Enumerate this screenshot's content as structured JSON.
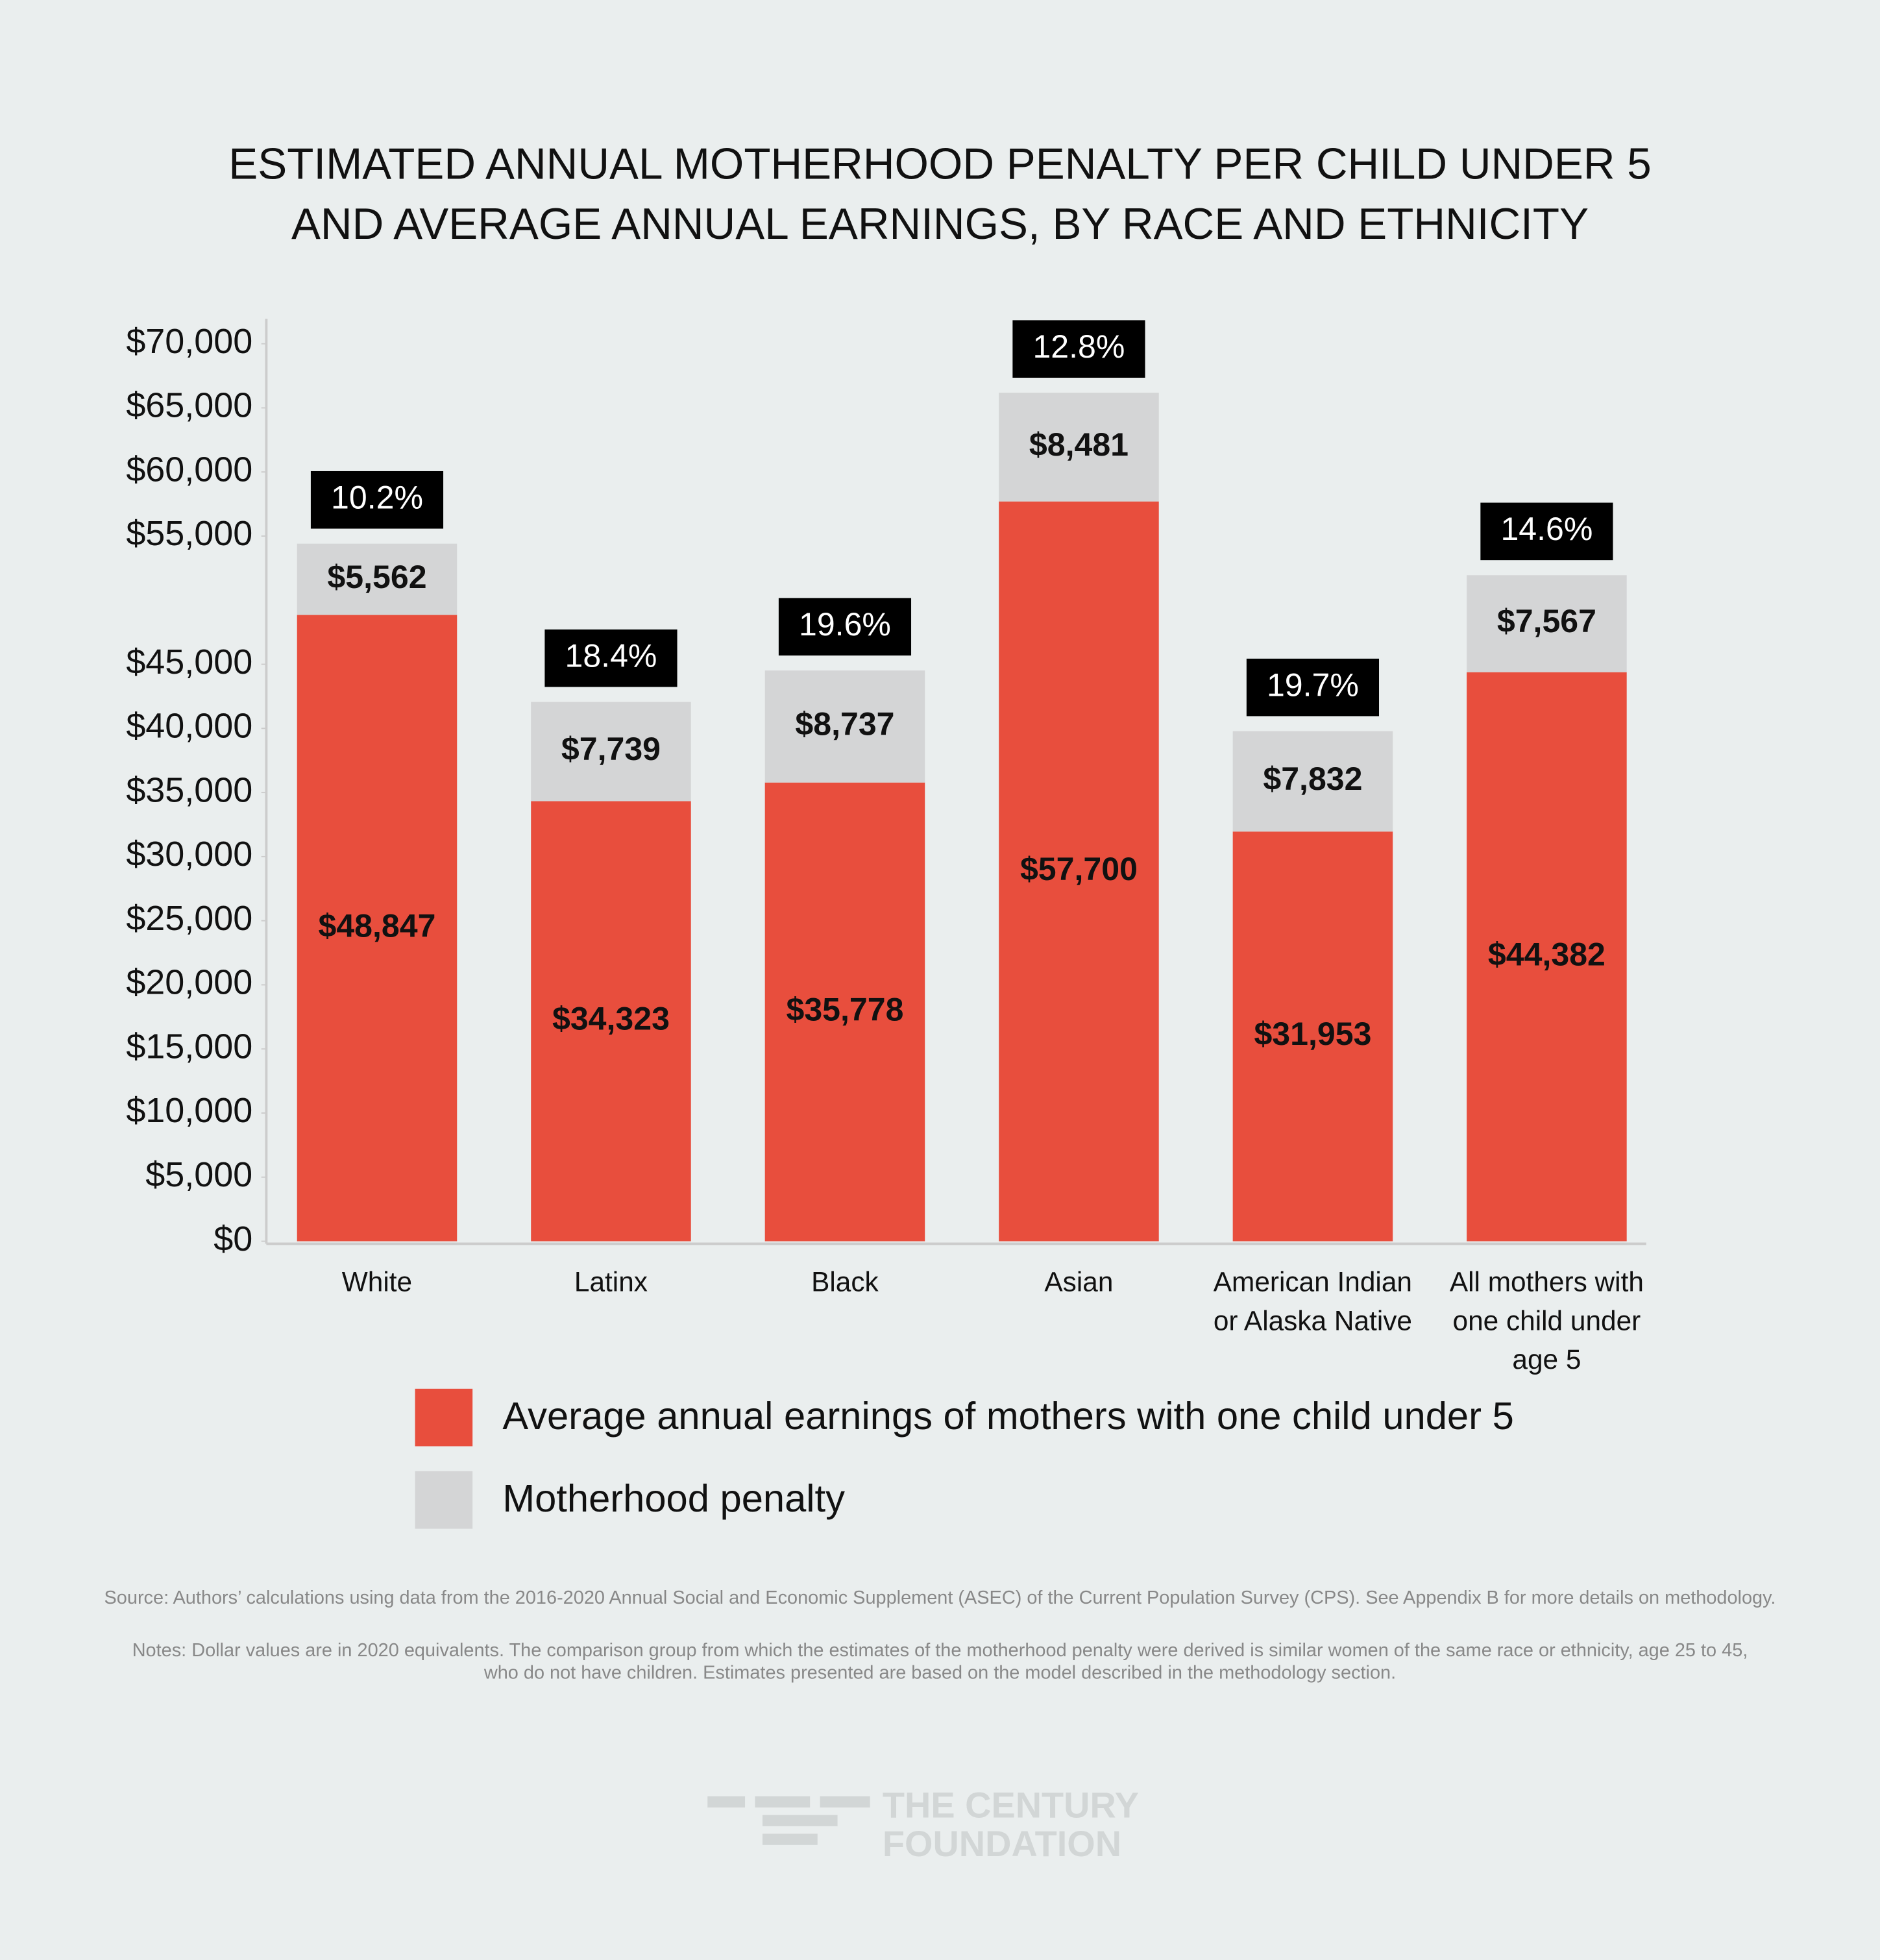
{
  "chart_data": {
    "type": "stacked_bar",
    "title": "ESTIMATED ANNUAL MOTHERHOOD PENALTY PER CHILD UNDER 5\nAND AVERAGE ANNUAL EARNINGS, BY RACE AND ETHNICITY",
    "categories": [
      "White",
      "Latinx",
      "Black",
      "Asian",
      "American Indian\nor Alaska Native",
      "All mothers with\none child under\nage 5"
    ],
    "series": [
      {
        "name": "Average annual earnings of mothers with one child under 5",
        "color": "#e84e3d",
        "values": [
          48847,
          34323,
          35778,
          57700,
          31953,
          44382
        ],
        "value_labels": [
          "$48,847",
          "$34,323",
          "$35,778",
          "$57,700",
          "$31,953",
          "$44,382"
        ]
      },
      {
        "name": "Motherhood penalty",
        "color": "#d4d5d6",
        "values": [
          5562,
          7739,
          8737,
          8481,
          7832,
          7567
        ],
        "value_labels": [
          "$5,562",
          "$7,739",
          "$8,737",
          "$8,481",
          "$7,832",
          "$7,567"
        ]
      }
    ],
    "annotations": [
      "10.2%",
      "18.4%",
      "19.6%",
      "12.8%",
      "19.7%",
      "14.6%"
    ],
    "ylim": [
      0,
      70000
    ],
    "yticks": [
      {
        "value": 0,
        "label": "$0"
      },
      {
        "value": 5000,
        "label": "$5,000"
      },
      {
        "value": 10000,
        "label": "$10,000"
      },
      {
        "value": 15000,
        "label": "$15,000"
      },
      {
        "value": 20000,
        "label": "$20,000"
      },
      {
        "value": 25000,
        "label": "$25,000"
      },
      {
        "value": 30000,
        "label": "$30,000"
      },
      {
        "value": 35000,
        "label": "$35,000"
      },
      {
        "value": 40000,
        "label": "$40,000"
      },
      {
        "value": 45000,
        "label": "$45,000"
      },
      {
        "value": 55000,
        "label": "$55,000"
      },
      {
        "value": 60000,
        "label": "$60,000"
      },
      {
        "value": 65000,
        "label": "$65,000"
      },
      {
        "value": 70000,
        "label": "$70,000"
      }
    ],
    "grid": false,
    "source": "Source: Authors’ calculations using data from the 2016-2020 Annual Social and Economic Supplement (ASEC) of the Current Population Survey (CPS). See Appendix B for more details on methodology.",
    "notes": "Notes: Dollar values are in 2020 equivalents. The comparison group from which the estimates of the motherhood penalty were derived is similar women of the same race or ethnicity, age 25 to 45,\nwho do not have children. Estimates presented are based on the model described in the methodology section.",
    "logo": "THE CENTURY\nFOUNDATION"
  }
}
